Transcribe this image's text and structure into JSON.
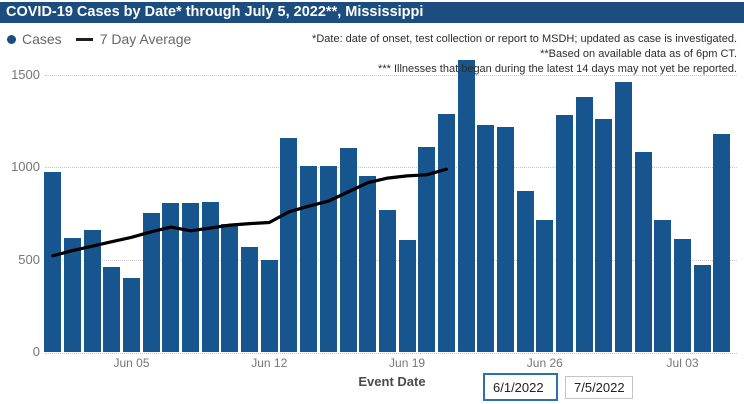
{
  "title_bar": {
    "title": "COVID-19 Cases by Date* through July 5, 2022**, Mississippi"
  },
  "legend": {
    "cases_label": "Cases",
    "avg_label": "7 Day Average"
  },
  "annotations": {
    "line1": "*Date: date of onset, test collection or report to MSDH; updated as case is investigated.",
    "line2": "**Based on available data as of 6pm CT.",
    "line3": "*** Illnesses that began during the latest 14 days may not yet be reported."
  },
  "x_axis": {
    "title": "Event Date"
  },
  "controls": {
    "start_date": "6/1/2022",
    "end_date": "7/5/2022"
  },
  "colors": {
    "title_bar_bg": "#1b4d7e",
    "bar_fill": "#17558f",
    "average_line": "#000000",
    "focused_input_border": "#2e6fad",
    "axis_text": "#767676"
  },
  "chart_data": {
    "type": "bar",
    "title": "COVID-19 Cases by Date* through July 5, 2022**, Mississippi",
    "xlabel": "Event Date",
    "ylabel": "",
    "ylim": [
      0,
      1620
    ],
    "yticks": [
      0,
      500,
      1000,
      1500
    ],
    "grid": "horizontal dotted",
    "legend_position": "top-left",
    "categories": [
      "Jun 1",
      "Jun 2",
      "Jun 3",
      "Jun 4",
      "Jun 5",
      "Jun 6",
      "Jun 7",
      "Jun 8",
      "Jun 9",
      "Jun 10",
      "Jun 11",
      "Jun 12",
      "Jun 13",
      "Jun 14",
      "Jun 15",
      "Jun 16",
      "Jun 17",
      "Jun 18",
      "Jun 19",
      "Jun 20",
      "Jun 21",
      "Jun 22",
      "Jun 23",
      "Jun 24",
      "Jun 25",
      "Jun 26",
      "Jun 27",
      "Jun 28",
      "Jun 29",
      "Jun 30",
      "Jul 1",
      "Jul 2",
      "Jul 3",
      "Jul 4",
      "Jul 5"
    ],
    "x_tick_labels": [
      "Jun 05",
      "Jun 12",
      "Jun 19",
      "Jun 26",
      "Jul 03"
    ],
    "x_tick_indices": [
      4,
      11,
      18,
      25,
      32
    ],
    "series": [
      {
        "name": "Cases",
        "type": "bar",
        "color": "#17558f",
        "values": [
          975,
          615,
          660,
          460,
          400,
          750,
          805,
          805,
          810,
          690,
          570,
          495,
          1155,
          1005,
          1005,
          1105,
          950,
          765,
          605,
          1110,
          1285,
          1580,
          1225,
          1215,
          870,
          715,
          1280,
          1380,
          1260,
          1460,
          1080,
          715,
          610,
          470,
          1180
        ]
      },
      {
        "name": "7 Day Average",
        "type": "line",
        "color": "#000000",
        "values": [
          520,
          548,
          572,
          596,
          620,
          650,
          675,
          655,
          670,
          686,
          694,
          700,
          758,
          788,
          815,
          865,
          915,
          940,
          952,
          958,
          988
        ]
      }
    ]
  }
}
